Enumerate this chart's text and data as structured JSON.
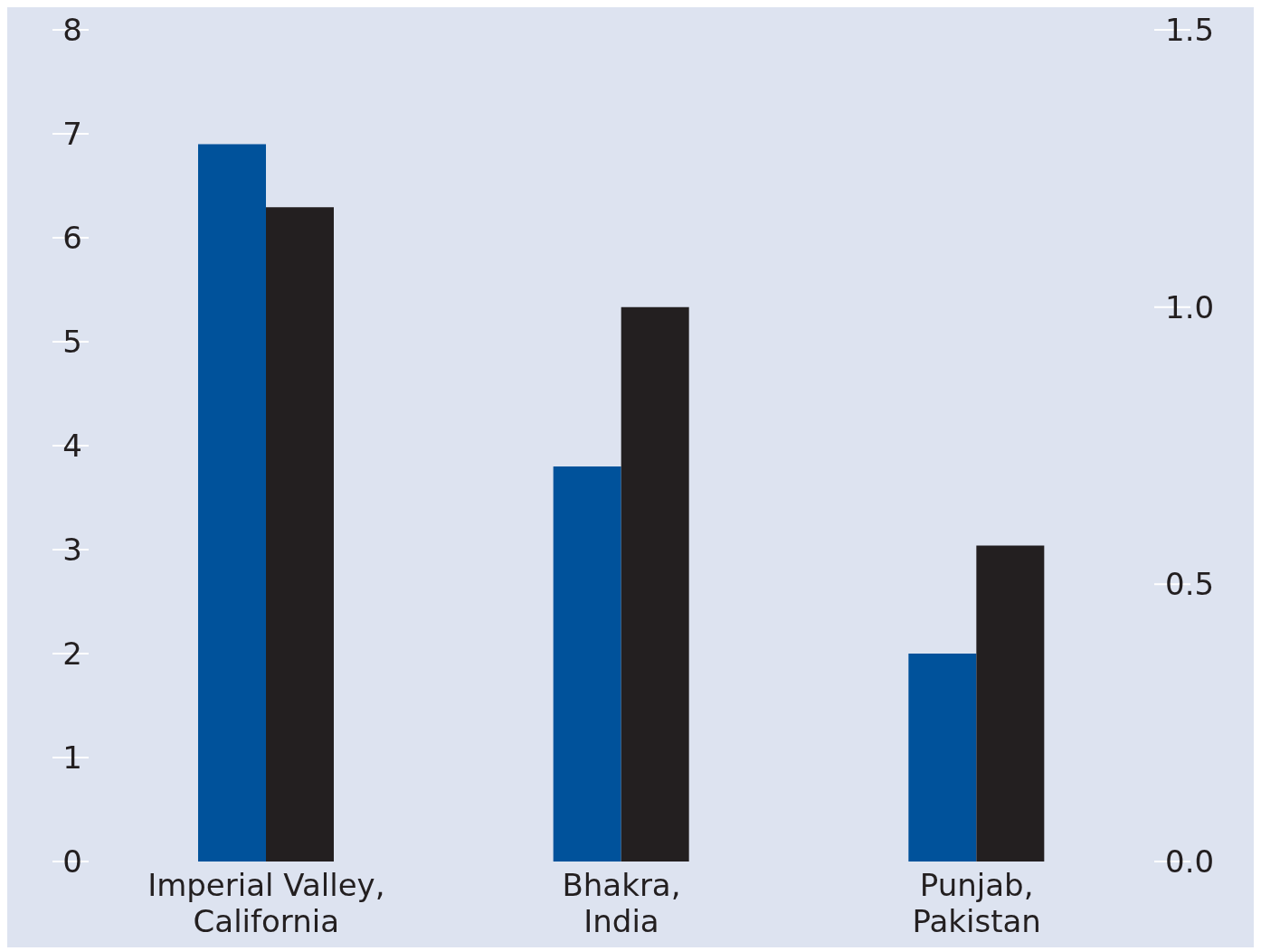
{
  "chart_data": {
    "type": "bar",
    "categories": [
      "Imperial Valley, California",
      "Bhakra, India",
      "Punjab, Pakistan"
    ],
    "series": [
      {
        "color": "#00529b",
        "values": [
          6.9,
          3.8,
          2.0
        ]
      },
      {
        "color": "#231f20",
        "values": [
          1.18,
          1.0,
          0.57
        ],
        "axis": "y2"
      }
    ],
    "ylim": [
      0,
      8
    ],
    "yticks": [
      0,
      1,
      2,
      3,
      4,
      5,
      6,
      7,
      8
    ],
    "y2lim": [
      0,
      1.5
    ],
    "y2ticks": [
      {
        "value": 0,
        "label": "0.0"
      },
      {
        "value": 0.5,
        "label": "0.5"
      },
      {
        "value": 1,
        "label": "1.0"
      },
      {
        "value": 1.5,
        "label": "1.5"
      }
    ],
    "grid": false,
    "legend": false
  }
}
